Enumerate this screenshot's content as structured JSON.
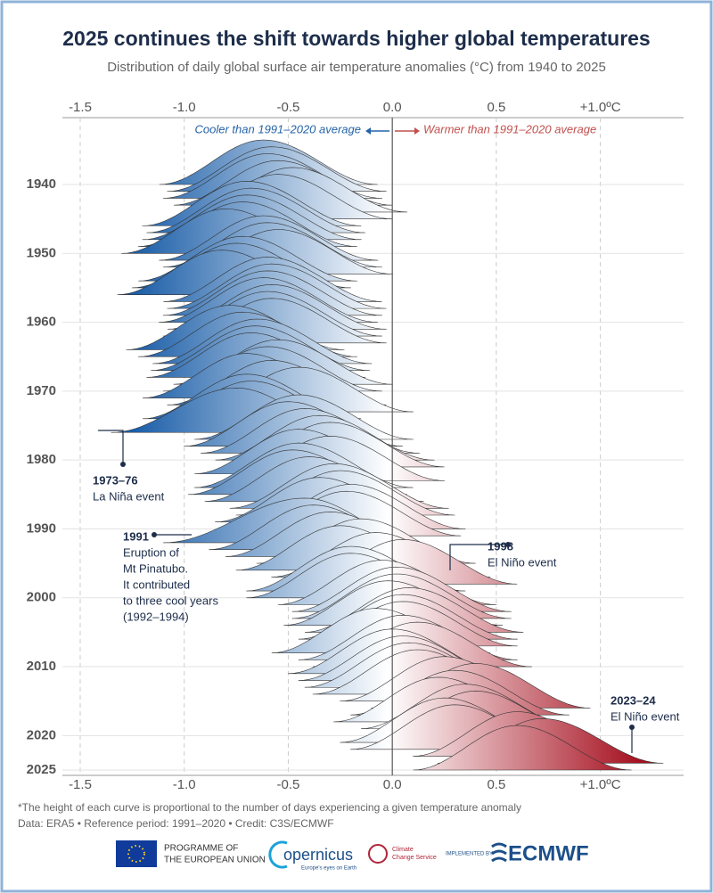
{
  "chart_data": {
    "type": "ridgeline",
    "title": "2025 continues the shift towards higher global temperatures",
    "subtitle": "Distribution of daily global surface air temperature anomalies (°C) from 1940 to 2025",
    "cooler_label": "Cooler than 1991–2020 average",
    "warmer_label": "Warmer than 1991–2020 average",
    "xlim": [
      -1.5,
      1.4
    ],
    "xticks": [
      -1.5,
      {
        "value": -1,
        "label": "-1.0"
      },
      -0.5,
      {
        "value": 0,
        "label": "0.0"
      },
      0.5,
      {
        "value": 1,
        "label": "+1.0ºC"
      }
    ],
    "ylim": [
      1940,
      2025
    ],
    "yticks": [
      1940,
      1950,
      1960,
      1970,
      1980,
      1990,
      2000,
      2010,
      2020,
      2025
    ],
    "grid": true,
    "colors": [
      "#1b5ea8",
      "#ffffff",
      "#a50f1e"
    ],
    "years": [
      1940,
      1941,
      1942,
      1943,
      1944,
      1945,
      1946,
      1947,
      1948,
      1949,
      1950,
      1951,
      1952,
      1953,
      1954,
      1955,
      1956,
      1957,
      1958,
      1959,
      1960,
      1961,
      1962,
      1963,
      1964,
      1965,
      1966,
      1967,
      1968,
      1969,
      1970,
      1971,
      1972,
      1973,
      1974,
      1975,
      1976,
      1977,
      1978,
      1979,
      1980,
      1981,
      1982,
      1983,
      1984,
      1985,
      1986,
      1987,
      1988,
      1989,
      1990,
      1991,
      1992,
      1993,
      1994,
      1995,
      1996,
      1997,
      1998,
      1999,
      2000,
      2001,
      2002,
      2003,
      2004,
      2005,
      2006,
      2007,
      2008,
      2009,
      2010,
      2011,
      2012,
      2013,
      2014,
      2015,
      2016,
      2017,
      2018,
      2019,
      2020,
      2021,
      2022,
      2023,
      2024,
      2025
    ],
    "values": [
      -0.62,
      -0.58,
      -0.6,
      -0.55,
      -0.48,
      -0.55,
      -0.7,
      -0.68,
      -0.7,
      -0.72,
      -0.8,
      -0.62,
      -0.6,
      -0.55,
      -0.72,
      -0.75,
      -0.82,
      -0.6,
      -0.58,
      -0.6,
      -0.62,
      -0.58,
      -0.6,
      -0.58,
      -0.78,
      -0.72,
      -0.65,
      -0.66,
      -0.68,
      -0.55,
      -0.6,
      -0.7,
      -0.58,
      -0.45,
      -0.7,
      -0.68,
      -0.75,
      -0.45,
      -0.5,
      -0.42,
      -0.35,
      -0.3,
      -0.45,
      -0.3,
      -0.45,
      -0.48,
      -0.4,
      -0.28,
      -0.25,
      -0.35,
      -0.2,
      -0.22,
      -0.42,
      -0.38,
      -0.3,
      -0.15,
      -0.25,
      -0.08,
      0.05,
      -0.2,
      -0.2,
      -0.05,
      0.02,
      0.02,
      -0.02,
      0.08,
      0.05,
      0.05,
      -0.08,
      0.05,
      0.12,
      0.0,
      0.05,
      0.08,
      0.12,
      0.25,
      0.4,
      0.3,
      0.22,
      0.35,
      0.4,
      0.25,
      0.3,
      0.6,
      0.72,
      0.6
    ],
    "min": [
      -1.12,
      -1.08,
      -1.1,
      -1.05,
      -0.98,
      -1.05,
      -1.2,
      -1.18,
      -1.2,
      -1.22,
      -1.3,
      -1.12,
      -1.1,
      -1.05,
      -1.22,
      -1.25,
      -1.32,
      -1.1,
      -1.08,
      -1.1,
      -1.12,
      -1.08,
      -1.1,
      -1.08,
      -1.28,
      -1.22,
      -1.15,
      -1.16,
      -1.18,
      -1.05,
      -1.1,
      -1.2,
      -1.08,
      -0.95,
      -1.2,
      -1.18,
      -1.35,
      -0.95,
      -1.0,
      -0.92,
      -0.85,
      -0.8,
      -0.95,
      -0.8,
      -0.95,
      -0.98,
      -0.9,
      -0.78,
      -0.75,
      -0.85,
      -0.7,
      -0.72,
      -1.1,
      -0.88,
      -0.8,
      -0.65,
      -0.75,
      -0.58,
      -0.45,
      -0.7,
      -0.7,
      -0.55,
      -0.48,
      -0.48,
      -0.52,
      -0.42,
      -0.45,
      -0.45,
      -0.58,
      -0.45,
      -0.38,
      -0.5,
      -0.45,
      -0.42,
      -0.38,
      -0.25,
      -0.1,
      -0.2,
      -0.28,
      -0.15,
      -0.1,
      -0.25,
      -0.2,
      0.1,
      0.22,
      0.1
    ],
    "max": [
      -0.07,
      -0.03,
      -0.05,
      0.0,
      0.07,
      0.0,
      -0.15,
      -0.13,
      -0.15,
      -0.17,
      -0.25,
      -0.07,
      -0.05,
      0.0,
      -0.17,
      -0.2,
      -0.27,
      -0.05,
      -0.03,
      -0.05,
      -0.07,
      -0.03,
      -0.05,
      -0.03,
      -0.23,
      -0.17,
      -0.1,
      -0.11,
      -0.13,
      0.0,
      -0.05,
      -0.15,
      -0.03,
      0.1,
      -0.15,
      -0.13,
      -0.2,
      0.1,
      0.05,
      0.13,
      0.2,
      0.25,
      0.1,
      0.25,
      0.1,
      0.07,
      0.15,
      0.27,
      0.3,
      0.2,
      0.35,
      0.33,
      0.13,
      0.17,
      0.25,
      0.4,
      0.3,
      0.47,
      0.6,
      0.35,
      0.35,
      0.5,
      0.57,
      0.57,
      0.53,
      0.63,
      0.6,
      0.6,
      0.47,
      0.6,
      0.67,
      0.55,
      0.6,
      0.63,
      0.67,
      0.8,
      0.95,
      0.85,
      0.77,
      0.9,
      0.95,
      0.8,
      0.85,
      1.15,
      1.3,
      1.15
    ],
    "annotations": [
      {
        "title": "1973–76",
        "lines": [
          "La Niña event"
        ]
      },
      {
        "title": "1991",
        "lines": [
          "Eruption of",
          "Mt Pinatubo.",
          "It contributed",
          "to three cool years",
          "(1992–1994)"
        ]
      },
      {
        "title": "1998",
        "lines": [
          "El Niño event"
        ]
      },
      {
        "title": "2023–24",
        "lines": [
          "El Niño event"
        ]
      }
    ],
    "footnote": "*The height of each curve is proportional to the number of days experiencing a given temperature anomaly",
    "source": "Data: ERA5 • Reference period: 1991–2020 • Credit: C3S/ECMWF",
    "logos": {
      "eu": [
        "PROGRAMME OF",
        "THE EUROPEAN UNION"
      ],
      "copernicus": "opernicus",
      "copernicus_sub": "Europe's eyes on Earth",
      "c3s": [
        "Climate",
        "Change Service"
      ],
      "implemented": "IMPLEMENTED BY",
      "ecmwf": "ECMWF"
    }
  }
}
